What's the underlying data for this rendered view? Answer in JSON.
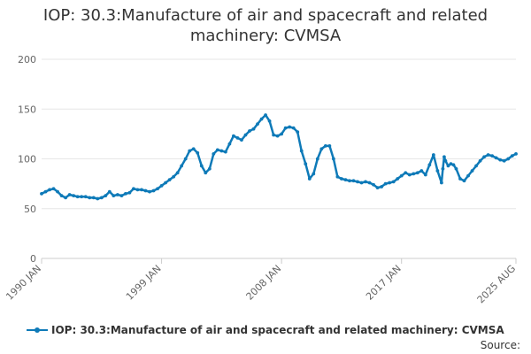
{
  "chart_data": {
    "type": "line",
    "title": "IOP: 30.3:Manufacture of air and spacecraft and related machinery: CVMSA",
    "xlabel": "",
    "ylabel": "",
    "ylim": [
      0,
      200
    ],
    "yticks": [
      0,
      50,
      100,
      150,
      200
    ],
    "xrange": [
      1990.0,
      2025.583
    ],
    "xticks": [
      {
        "label": "1990 JAN",
        "x": 1990.0
      },
      {
        "label": "1999 JAN",
        "x": 1999.0
      },
      {
        "label": "2008 JAN",
        "x": 2008.0
      },
      {
        "label": "2017 JAN",
        "x": 2017.0
      },
      {
        "label": "2025 AUG",
        "x": 2025.583
      }
    ],
    "series": [
      {
        "name": "IOP: 30.3:Manufacture of air and spacecraft and related machinery: CVMSA",
        "color": "#0e7ab8",
        "x": [
          1990.0,
          1990.3,
          1990.6,
          1990.9,
          1991.2,
          1991.5,
          1991.8,
          1992.1,
          1992.4,
          1992.7,
          1993.0,
          1993.3,
          1993.6,
          1993.9,
          1994.2,
          1994.5,
          1994.8,
          1995.1,
          1995.4,
          1995.7,
          1996.0,
          1996.3,
          1996.6,
          1996.9,
          1997.2,
          1997.5,
          1997.8,
          1998.1,
          1998.4,
          1998.7,
          1999.0,
          1999.3,
          1999.6,
          1999.9,
          2000.2,
          2000.5,
          2000.8,
          2001.1,
          2001.4,
          2001.7,
          2002.0,
          2002.3,
          2002.6,
          2002.9,
          2003.2,
          2003.5,
          2003.8,
          2004.1,
          2004.4,
          2004.7,
          2005.0,
          2005.3,
          2005.6,
          2005.9,
          2006.2,
          2006.5,
          2006.8,
          2007.1,
          2007.4,
          2007.7,
          2008.0,
          2008.3,
          2008.6,
          2008.9,
          2009.2,
          2009.5,
          2009.8,
          2010.1,
          2010.4,
          2010.7,
          2011.0,
          2011.3,
          2011.6,
          2011.9,
          2012.2,
          2012.5,
          2012.8,
          2013.1,
          2013.4,
          2013.7,
          2014.0,
          2014.3,
          2014.6,
          2014.9,
          2015.2,
          2015.5,
          2015.8,
          2016.1,
          2016.4,
          2016.7,
          2017.0,
          2017.3,
          2017.6,
          2017.9,
          2018.2,
          2018.5,
          2018.8,
          2019.1,
          2019.4,
          2019.7,
          2020.0,
          2020.1,
          2020.2,
          2020.3,
          2020.5,
          2020.7,
          2020.9,
          2021.1,
          2021.4,
          2021.7,
          2022.0,
          2022.3,
          2022.6,
          2022.9,
          2023.2,
          2023.5,
          2023.8,
          2024.1,
          2024.4,
          2024.7,
          2025.0,
          2025.3,
          2025.583
        ],
        "values": [
          65,
          67,
          69,
          70,
          67,
          63,
          61,
          64,
          63,
          62,
          62,
          62,
          61,
          61,
          60,
          61,
          63,
          67,
          63,
          64,
          63,
          65,
          66,
          70,
          69,
          69,
          68,
          67,
          68,
          70,
          73,
          76,
          79,
          82,
          86,
          93,
          100,
          108,
          110,
          106,
          93,
          86,
          90,
          105,
          109,
          108,
          107,
          115,
          123,
          121,
          119,
          124,
          128,
          130,
          135,
          140,
          144,
          138,
          124,
          123,
          125,
          131,
          132,
          131,
          127,
          108,
          95,
          80,
          85,
          100,
          110,
          113,
          113,
          100,
          82,
          80,
          79,
          78,
          78,
          77,
          76,
          77,
          76,
          74,
          71,
          72,
          75,
          76,
          77,
          80,
          83,
          86,
          84,
          85,
          86,
          88,
          84,
          94,
          104,
          88,
          76,
          90,
          102,
          98,
          93,
          95,
          94,
          90,
          80,
          78,
          83,
          88,
          93,
          98,
          102,
          104,
          103,
          101,
          99,
          98,
          100,
          103,
          105
        ]
      }
    ]
  },
  "legend_label": "IOP: 30.3:Manufacture of air and spacecraft and related machinery: CVMSA",
  "source_label": "Source:"
}
